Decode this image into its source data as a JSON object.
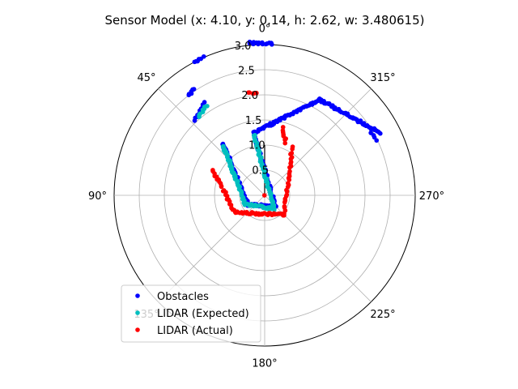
{
  "chart_data": {
    "type": "scatter",
    "projection": "polar",
    "title": "Sensor Model (x: 4.10, y: 0.14, h: 2.62, w: 3.480615)",
    "theta_zero": "top",
    "theta_direction": "counterclockwise",
    "theta_ticks": [
      "0°",
      "45°",
      "90°",
      "135°",
      "180°",
      "225°",
      "270°",
      "315°"
    ],
    "theta_tick_degrees": [
      0,
      45,
      90,
      135,
      180,
      225,
      270,
      315
    ],
    "r_ticks": [
      "0.5",
      "1.0",
      "1.5",
      "2.0",
      "2.5",
      "3.0"
    ],
    "r_tick_values": [
      0.5,
      1.0,
      1.5,
      2.0,
      2.5,
      3.0
    ],
    "rlim": [
      0,
      3.0
    ],
    "grid": true,
    "legend_position": "lower left",
    "heading_line": {
      "theta_deg": 0,
      "r": 1.0,
      "color": "#000000"
    },
    "series": [
      {
        "name": "Obstacles",
        "color": "#0000ff",
        "marker": "dot",
        "segments": [
          {
            "r1": 1.32,
            "t1": 39,
            "r2": 0.38,
            "t2": 120,
            "n": 55
          },
          {
            "r1": 0.38,
            "t1": 120,
            "r2": 0.3,
            "t2": 225,
            "n": 40
          },
          {
            "r1": 0.3,
            "t1": 225,
            "r2": 1.26,
            "t2": 10,
            "n": 55
          },
          {
            "r1": 1.26,
            "t1": 10,
            "r2": 2.2,
            "t2": 330,
            "n": 70
          },
          {
            "r1": 2.2,
            "t1": 330,
            "r2": 2.62,
            "t2": 298,
            "n": 50
          },
          {
            "r1": 2.45,
            "t1": 300,
            "r2": 2.5,
            "t2": 296,
            "n": 4
          },
          {
            "r1": 2.5,
            "t1": 37,
            "r2": 2.55,
            "t2": 34,
            "n": 6
          },
          {
            "r1": 2.03,
            "t1": 43,
            "r2": 2.22,
            "t2": 33,
            "n": 10
          },
          {
            "r1": 3.05,
            "t1": 6,
            "r2": 3.02,
            "t2": 357,
            "n": 14
          },
          {
            "r1": 3.0,
            "t1": 24,
            "r2": 3.0,
            "t2": 28,
            "n": 6
          }
        ]
      },
      {
        "name": "LIDAR (Expected)",
        "color": "#00bfbf",
        "marker": "dot",
        "segments": [
          {
            "r1": 1.28,
            "t1": 40,
            "r2": 0.42,
            "t2": 115,
            "n": 50
          },
          {
            "r1": 0.42,
            "t1": 115,
            "r2": 0.33,
            "t2": 215,
            "n": 30
          },
          {
            "r1": 0.33,
            "t1": 215,
            "r2": 1.22,
            "t2": 10,
            "n": 55
          },
          {
            "r1": 2.05,
            "t1": 40,
            "r2": 2.13,
            "t2": 33,
            "n": 8
          }
        ]
      },
      {
        "name": "LIDAR (Actual)",
        "color": "#ff0000",
        "marker": "dot",
        "segments": [
          {
            "r1": 1.15,
            "t1": 64,
            "r2": 0.68,
            "t2": 120,
            "n": 25
          },
          {
            "r1": 0.68,
            "t1": 120,
            "r2": 0.55,
            "t2": 225,
            "n": 45
          },
          {
            "r1": 0.55,
            "t1": 225,
            "r2": 1.1,
            "t2": 330,
            "n": 30
          },
          {
            "r1": 1.12,
            "t1": 338,
            "r2": 1.4,
            "t2": 345,
            "n": 8
          },
          {
            "r1": 2.03,
            "t1": 5,
            "r2": 2.06,
            "t2": 9,
            "n": 5
          },
          {
            "r1": 0.0,
            "t1": 0,
            "r2": 0.0,
            "t2": 0,
            "n": 1
          }
        ]
      }
    ]
  }
}
